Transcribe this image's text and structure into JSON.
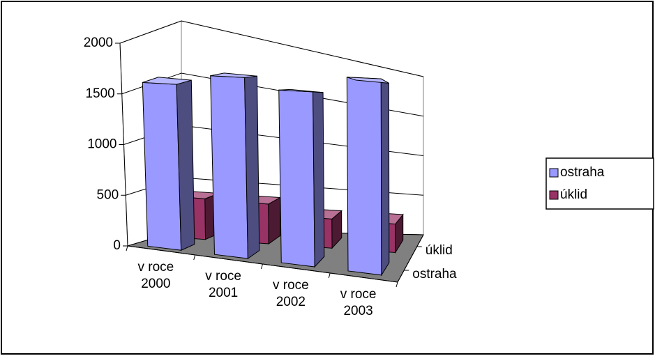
{
  "chart_data": {
    "type": "bar3d",
    "categories": [
      "v roce 2000",
      "v roce 2001",
      "v roce 2002",
      "v roce 2003"
    ],
    "series": [
      {
        "name": "ostraha",
        "color": "#9999ff",
        "values": [
          1600,
          1700,
          1600,
          1750
        ]
      },
      {
        "name": "úklid",
        "color": "#993366",
        "values": [
          400,
          400,
          300,
          300
        ]
      }
    ],
    "ylim": [
      0,
      2000
    ],
    "yticks": [
      0,
      500,
      1000,
      1500,
      2000
    ],
    "grid": true,
    "legend": "right"
  }
}
